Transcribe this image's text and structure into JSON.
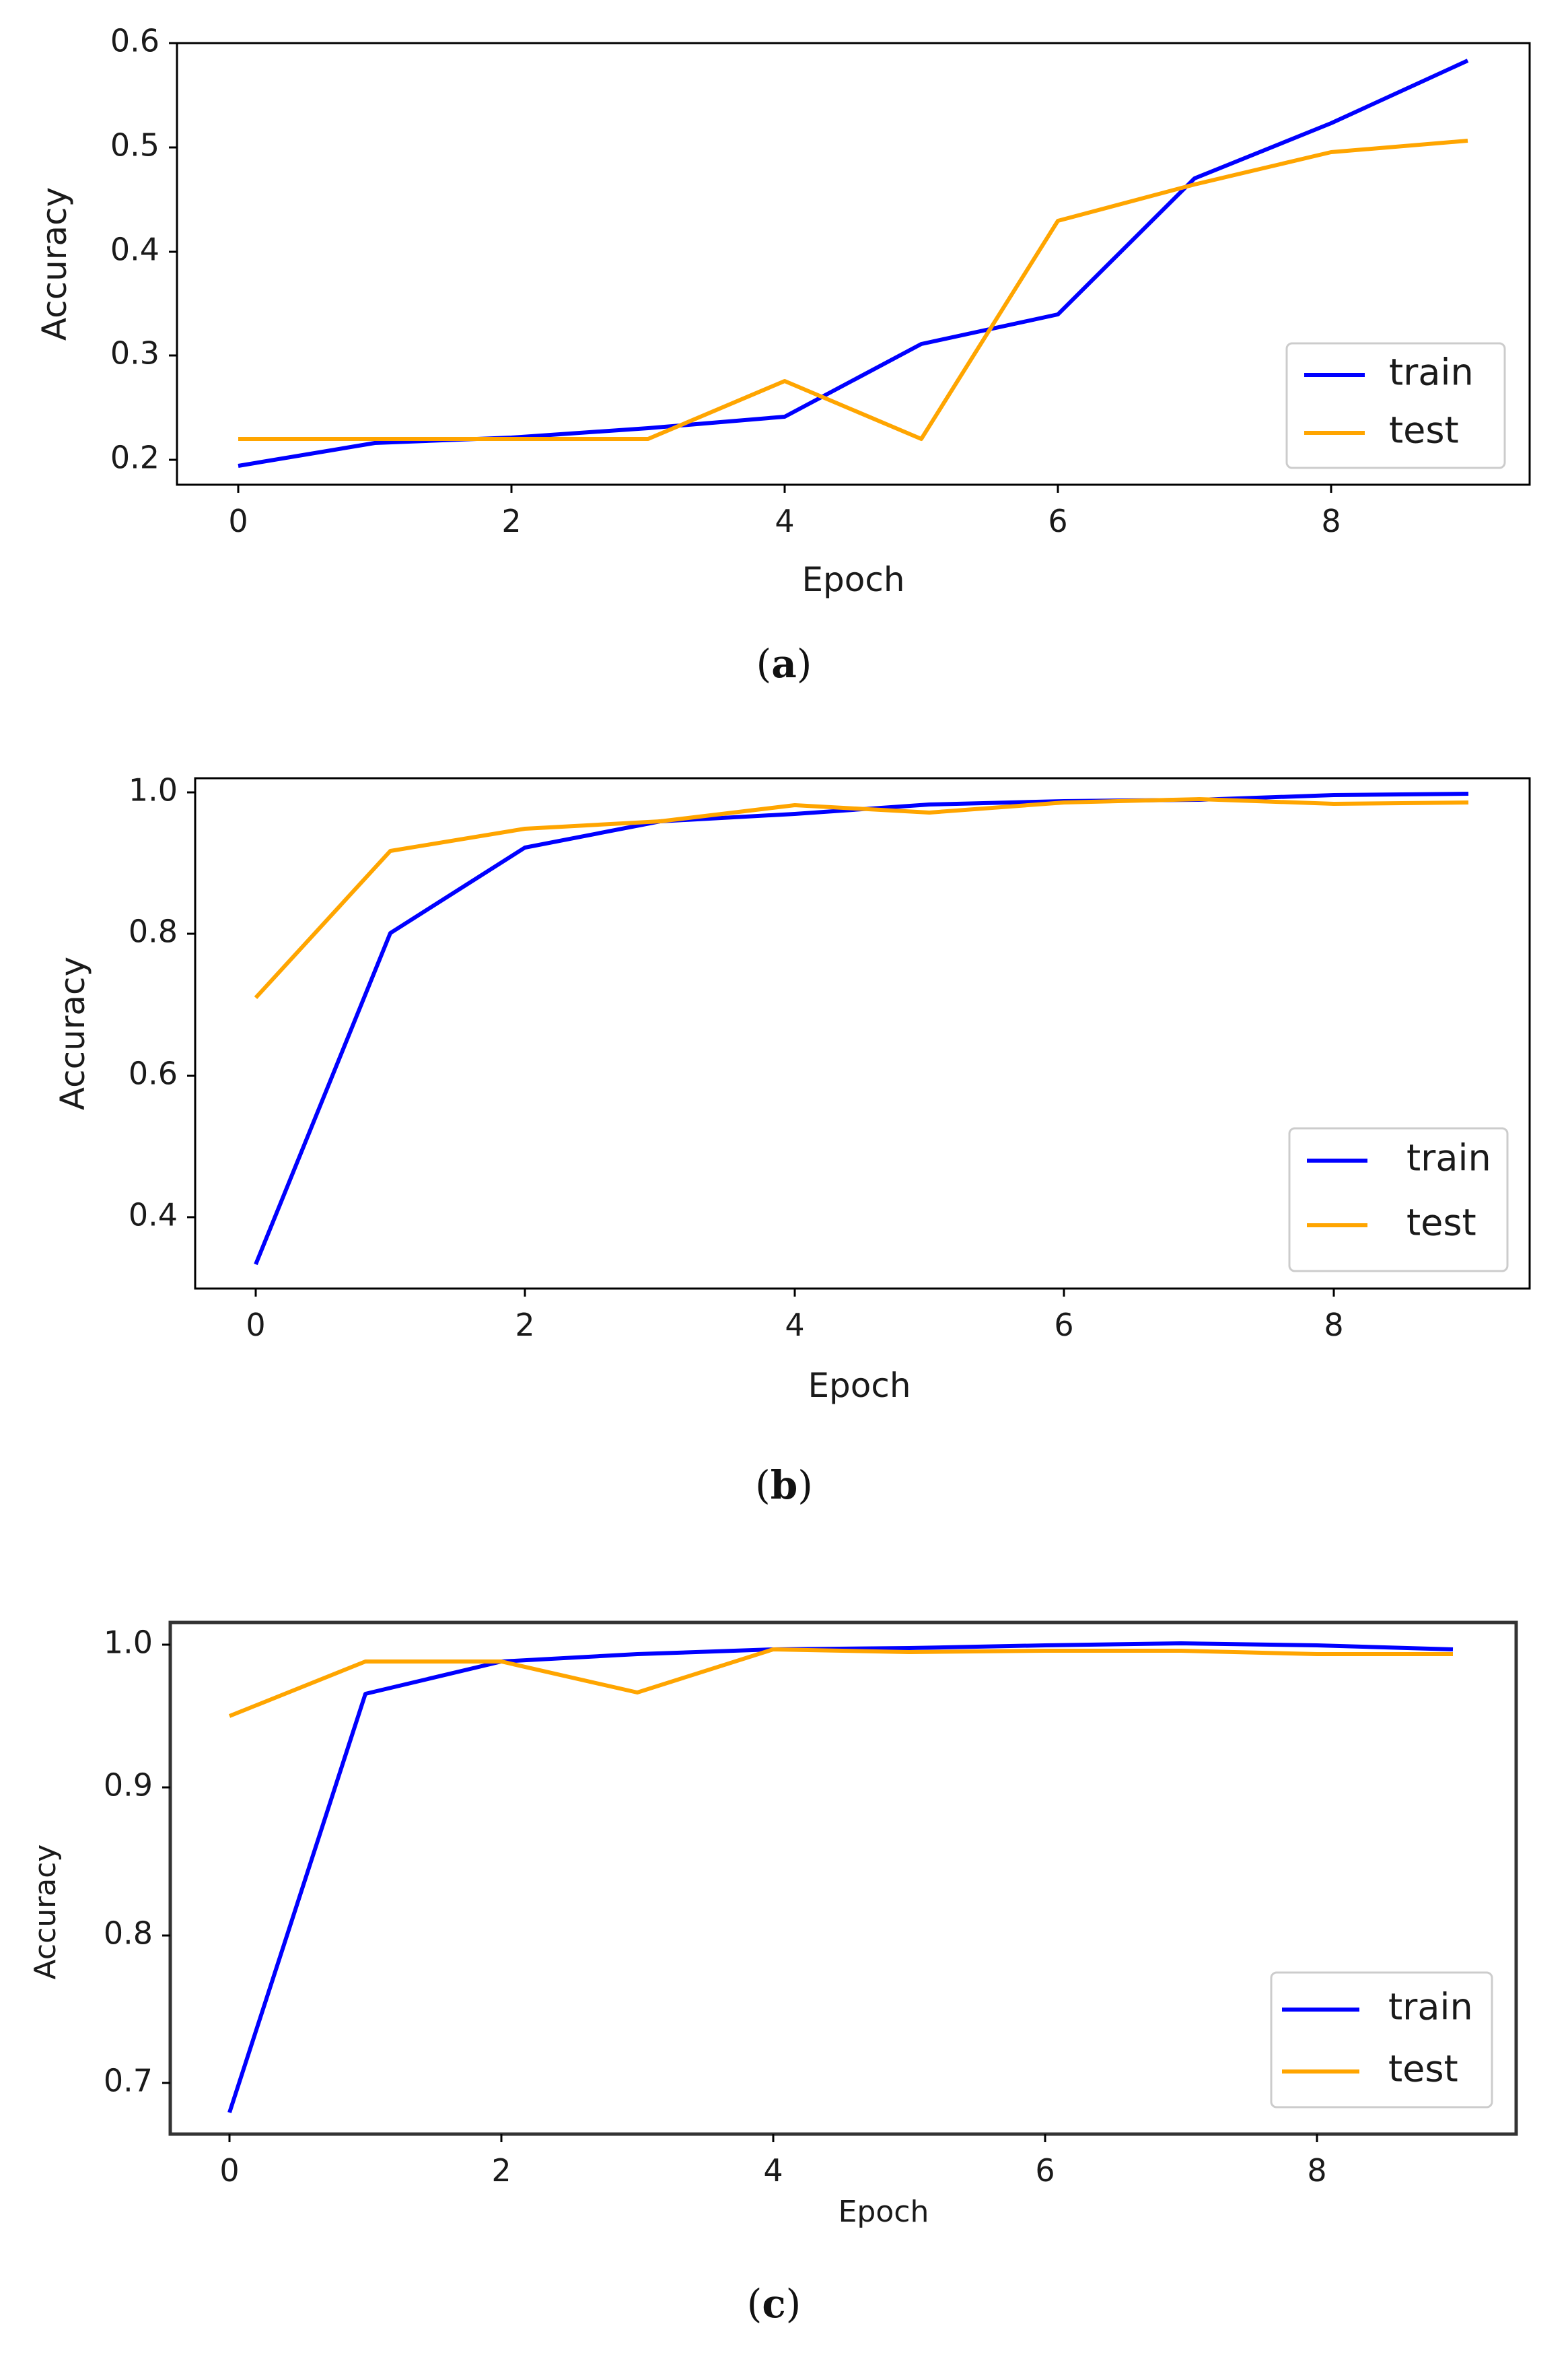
{
  "chart_data": [
    {
      "type": "line",
      "caption": "a",
      "xlabel": "Epoch",
      "ylabel": "Accuracy",
      "x": [
        0,
        1,
        2,
        3,
        4,
        5,
        6,
        7,
        8,
        9
      ],
      "xlim": [
        -0.45,
        9.45
      ],
      "ylim": [
        0.174,
        0.603
      ],
      "xticks": [
        "0",
        "2",
        "4",
        "6",
        "8"
      ],
      "yticks": [
        "0.2",
        "0.3",
        "0.4",
        "0.5",
        "0.6"
      ],
      "legend_position": "lower-right",
      "series": [
        {
          "name": "train",
          "color": "#0000ff",
          "values": [
            0.195,
            0.217,
            0.222,
            0.231,
            0.242,
            0.312,
            0.34,
            0.471,
            0.524,
            0.584
          ]
        },
        {
          "name": "test",
          "color": "#ffa500",
          "values": [
            0.221,
            0.221,
            0.221,
            0.221,
            0.276,
            0.221,
            0.43,
            0.465,
            0.496,
            0.507
          ]
        }
      ]
    },
    {
      "type": "line",
      "caption": "b",
      "xlabel": "Epoch",
      "ylabel": "Accuracy",
      "x": [
        0,
        1,
        2,
        3,
        4,
        5,
        6,
        7,
        8,
        9
      ],
      "xlim": [
        -0.45,
        9.45
      ],
      "ylim": [
        0.3,
        1.02
      ],
      "xticks": [
        "0",
        "2",
        "4",
        "6",
        "8"
      ],
      "yticks": [
        "0.4",
        "0.6",
        "0.8",
        "1.0"
      ],
      "legend_position": "lower-right",
      "series": [
        {
          "name": "train",
          "color": "#0000ff",
          "values": [
            0.333,
            0.797,
            0.918,
            0.955,
            0.965,
            0.978,
            0.983,
            0.985,
            0.991,
            0.993
          ]
        },
        {
          "name": "test",
          "color": "#ffa500",
          "values": [
            0.71,
            0.917,
            0.948,
            0.958,
            0.981,
            0.971,
            0.985,
            0.99,
            0.983,
            0.985
          ]
        }
      ]
    },
    {
      "type": "line",
      "caption": "c",
      "xlabel": "Epoch",
      "ylabel": "Accuracy",
      "x": [
        0,
        1,
        2,
        3,
        4,
        5,
        6,
        7,
        8,
        9
      ],
      "xlim": [
        -0.45,
        9.45
      ],
      "ylim": [
        0.667,
        1.015
      ],
      "xticks": [
        "0",
        "2",
        "4",
        "6",
        "8"
      ],
      "yticks": [
        "0.7",
        "0.8",
        "0.9",
        "1.0"
      ],
      "legend_position": "lower-right",
      "series": [
        {
          "name": "train",
          "color": "#0000ff",
          "values": [
            0.68,
            0.963,
            0.985,
            0.99,
            0.993,
            0.994,
            0.996,
            0.997,
            0.996,
            0.993
          ]
        },
        {
          "name": "test",
          "color": "#ffa500",
          "values": [
            0.948,
            0.985,
            0.985,
            0.964,
            0.993,
            0.991,
            0.992,
            0.992,
            0.99,
            0.99
          ]
        }
      ]
    }
  ]
}
